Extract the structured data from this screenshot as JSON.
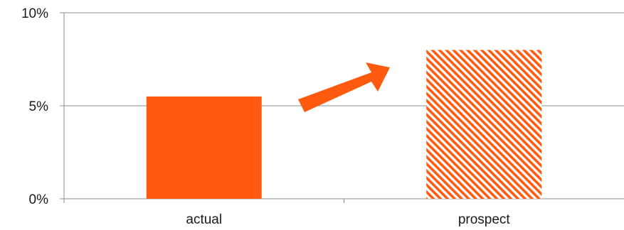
{
  "chart_data": {
    "type": "bar",
    "categories": [
      "actual",
      "prospect"
    ],
    "values": [
      5.5,
      8.0
    ],
    "value_unit": "%",
    "ylim": [
      0,
      10
    ],
    "yticks": [
      {
        "value": 0,
        "label": "0%"
      },
      {
        "value": 5,
        "label": "5%"
      },
      {
        "value": 10,
        "label": "10%"
      }
    ],
    "grid": "horizontal",
    "legend": "none",
    "bar_styles": [
      "solid",
      "hatched"
    ],
    "annotation": "arrow from actual to prospect",
    "colors": {
      "bar": "#ff5a0f",
      "hatch_bg": "#ffffff",
      "grid": "#8c8c8c",
      "axis": "#8c8c8c"
    }
  }
}
